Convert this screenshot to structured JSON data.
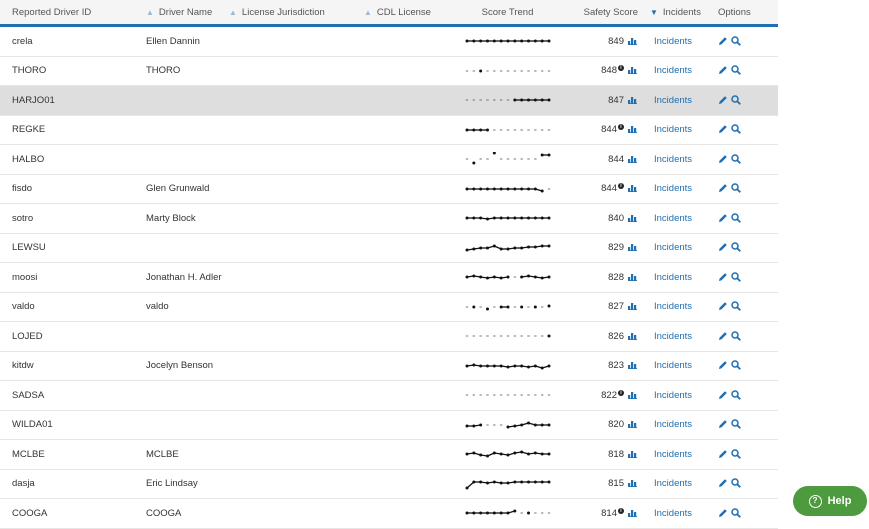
{
  "columns": {
    "reported_driver_id": "Reported Driver ID",
    "driver_name": "Driver Name",
    "license_jurisdiction": "License Jurisdiction",
    "cdl_license": "CDL License",
    "score_trend": "Score Trend",
    "safety_score": "Safety Score",
    "incidents": "Incidents",
    "options": "Options"
  },
  "rows": [
    {
      "id": "crela",
      "name": "Ellen Dannin",
      "score": "849",
      "info": false,
      "incidents": "Incidents",
      "highlight": false,
      "trend": [
        [
          0,
          3
        ],
        [
          1,
          3
        ],
        [
          2,
          3
        ],
        [
          3,
          3
        ],
        [
          4,
          3
        ],
        [
          5,
          3
        ],
        [
          6,
          3
        ],
        [
          7,
          3
        ],
        [
          8,
          3
        ],
        [
          9,
          3
        ],
        [
          10,
          3
        ],
        [
          11,
          3
        ],
        [
          12,
          3
        ]
      ]
    },
    {
      "id": "THORO",
      "name": "THORO",
      "score": "848",
      "info": true,
      "incidents": "Incidents",
      "highlight": false,
      "trend": [
        [
          2,
          3
        ]
      ]
    },
    {
      "id": "HARJO01",
      "name": "",
      "score": "847",
      "info": false,
      "incidents": "Incidents",
      "highlight": true,
      "trend": [
        [
          7,
          3
        ],
        [
          8,
          3
        ],
        [
          9,
          3
        ],
        [
          10,
          3
        ],
        [
          11,
          3
        ],
        [
          12,
          3
        ]
      ]
    },
    {
      "id": "REGKE",
      "name": "",
      "score": "844",
      "info": true,
      "incidents": "Incidents",
      "highlight": false,
      "trend": [
        [
          0,
          3
        ],
        [
          1,
          3
        ],
        [
          2,
          3
        ],
        [
          3,
          3
        ]
      ]
    },
    {
      "id": "HALBO",
      "name": "",
      "score": "844",
      "info": false,
      "incidents": "Incidents",
      "highlight": false,
      "trend": [
        [
          1,
          5
        ],
        [
          4,
          0
        ],
        [
          11,
          1
        ],
        [
          12,
          1
        ]
      ]
    },
    {
      "id": "fisdo",
      "name": "Glen Grunwald",
      "score": "844",
      "info": true,
      "incidents": "Incidents",
      "highlight": false,
      "trend": [
        [
          0,
          3
        ],
        [
          1,
          3
        ],
        [
          2,
          3
        ],
        [
          3,
          3
        ],
        [
          4,
          3
        ],
        [
          5,
          3
        ],
        [
          6,
          3
        ],
        [
          7,
          3
        ],
        [
          8,
          3
        ],
        [
          9,
          3
        ],
        [
          10,
          3
        ],
        [
          11,
          4
        ]
      ]
    },
    {
      "id": "sotro",
      "name": "Marty Block",
      "score": "840",
      "info": false,
      "incidents": "Incidents",
      "highlight": false,
      "trend": [
        [
          0,
          3
        ],
        [
          1,
          3
        ],
        [
          2,
          3
        ],
        [
          3,
          3.5
        ],
        [
          4,
          3
        ],
        [
          5,
          3
        ],
        [
          6,
          3
        ],
        [
          7,
          3
        ],
        [
          8,
          3
        ],
        [
          9,
          3
        ],
        [
          10,
          3
        ],
        [
          11,
          3
        ],
        [
          12,
          3
        ]
      ]
    },
    {
      "id": "LEWSU",
      "name": "",
      "score": "829",
      "info": false,
      "incidents": "Incidents",
      "highlight": false,
      "trend": [
        [
          0,
          4
        ],
        [
          1,
          3.5
        ],
        [
          2,
          3
        ],
        [
          3,
          3
        ],
        [
          4,
          2
        ],
        [
          5,
          3.5
        ],
        [
          6,
          3.5
        ],
        [
          7,
          3
        ],
        [
          8,
          3
        ],
        [
          9,
          2.5
        ],
        [
          10,
          2.5
        ],
        [
          11,
          2
        ],
        [
          12,
          2
        ]
      ]
    },
    {
      "id": "moosi",
      "name": "Jonathan H. Adler",
      "score": "828",
      "info": false,
      "incidents": "Incidents",
      "highlight": false,
      "trend": [
        [
          0,
          3
        ],
        [
          1,
          2.5
        ],
        [
          2,
          3
        ],
        [
          3,
          3.5
        ],
        [
          4,
          3
        ],
        [
          5,
          3.5
        ],
        [
          6,
          3
        ],
        [
          8,
          3
        ],
        [
          9,
          2.5
        ],
        [
          10,
          3
        ],
        [
          11,
          3.5
        ],
        [
          12,
          3
        ]
      ]
    },
    {
      "id": "valdo",
      "name": "valdo",
      "score": "827",
      "info": false,
      "incidents": "Incidents",
      "highlight": false,
      "trend": [
        [
          1,
          3
        ],
        [
          3,
          4
        ],
        [
          5,
          3
        ],
        [
          6,
          3
        ],
        [
          8,
          3
        ],
        [
          10,
          3
        ],
        [
          12,
          2.5
        ]
      ]
    },
    {
      "id": "LOJED",
      "name": "",
      "score": "826",
      "info": false,
      "incidents": "Incidents",
      "highlight": false,
      "trend": [
        [
          12,
          3
        ]
      ]
    },
    {
      "id": "kitdw",
      "name": "Jocelyn Benson",
      "score": "823",
      "info": false,
      "incidents": "Incidents",
      "highlight": false,
      "trend": [
        [
          0,
          3
        ],
        [
          1,
          2.5
        ],
        [
          2,
          3
        ],
        [
          3,
          3
        ],
        [
          4,
          3
        ],
        [
          5,
          3
        ],
        [
          6,
          3.5
        ],
        [
          7,
          3
        ],
        [
          8,
          3
        ],
        [
          9,
          3.5
        ],
        [
          10,
          3
        ],
        [
          11,
          4
        ],
        [
          12,
          3
        ]
      ]
    },
    {
      "id": "SADSA",
      "name": "",
      "score": "822",
      "info": true,
      "incidents": "Incidents",
      "highlight": false,
      "trend": []
    },
    {
      "id": "WILDA01",
      "name": "",
      "score": "820",
      "info": false,
      "incidents": "Incidents",
      "highlight": false,
      "trend": [
        [
          0,
          3.5
        ],
        [
          1,
          3.5
        ],
        [
          2,
          3
        ],
        [
          6,
          4
        ],
        [
          7,
          3.5
        ],
        [
          8,
          3
        ],
        [
          9,
          2
        ],
        [
          10,
          3
        ],
        [
          11,
          3
        ],
        [
          12,
          3
        ]
      ]
    },
    {
      "id": "MCLBE",
      "name": "MCLBE",
      "score": "818",
      "info": false,
      "incidents": "Incidents",
      "highlight": false,
      "trend": [
        [
          0,
          3
        ],
        [
          1,
          2.5
        ],
        [
          2,
          3.5
        ],
        [
          3,
          4
        ],
        [
          4,
          2.5
        ],
        [
          5,
          3
        ],
        [
          6,
          3.5
        ],
        [
          7,
          2.5
        ],
        [
          8,
          2
        ],
        [
          9,
          3
        ],
        [
          10,
          2.5
        ],
        [
          11,
          3
        ],
        [
          12,
          3
        ]
      ]
    },
    {
      "id": "dasja",
      "name": "Eric Lindsay",
      "score": "815",
      "info": false,
      "incidents": "Incidents",
      "highlight": false,
      "trend": [
        [
          0,
          5
        ],
        [
          1,
          2
        ],
        [
          2,
          2
        ],
        [
          3,
          2.5
        ],
        [
          4,
          2
        ],
        [
          5,
          2.5
        ],
        [
          6,
          2.5
        ],
        [
          7,
          2
        ],
        [
          8,
          2
        ],
        [
          9,
          2
        ],
        [
          10,
          2
        ],
        [
          11,
          2
        ],
        [
          12,
          2
        ]
      ]
    },
    {
      "id": "COOGA",
      "name": "COOGA",
      "score": "814",
      "info": true,
      "incidents": "Incidents",
      "highlight": false,
      "trend": [
        [
          0,
          3
        ],
        [
          1,
          3
        ],
        [
          2,
          3
        ],
        [
          3,
          3
        ],
        [
          4,
          3
        ],
        [
          5,
          3
        ],
        [
          6,
          3
        ],
        [
          7,
          2
        ],
        [
          9,
          3
        ]
      ]
    }
  ],
  "help": {
    "label": "Help"
  },
  "colors": {
    "accent": "#1f6fb2",
    "help": "#4d9a3f",
    "highlight_row": "#dedede"
  },
  "icons": {
    "score_chart": "bar-chart-icon",
    "edit": "pencil-icon",
    "view": "search-icon",
    "info": "info-icon",
    "help": "help-circle-icon",
    "sort": "sort-icon"
  }
}
